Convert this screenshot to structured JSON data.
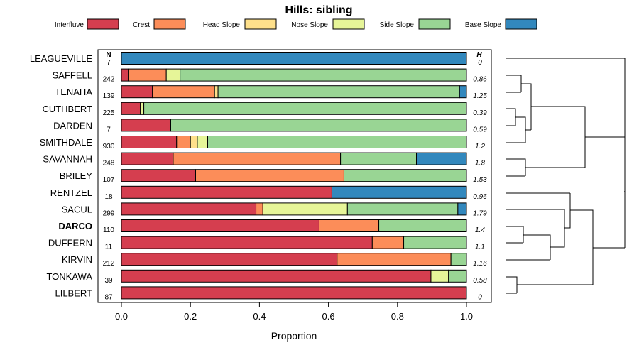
{
  "chart_data": {
    "type": "bar",
    "stacked": true,
    "orientation": "horizontal",
    "title": "Hills: sibling",
    "xlabel": "Proportion",
    "ylabel": "",
    "xlim": [
      0,
      1
    ],
    "xticks": [
      "0.0",
      "0.2",
      "0.4",
      "0.6",
      "0.8",
      "1.0"
    ],
    "n_header": "N",
    "h_header": "H",
    "legend": [
      {
        "name": "Interfluve",
        "color": "#d53e4f"
      },
      {
        "name": "Crest",
        "color": "#fc8d59"
      },
      {
        "name": "Head Slope",
        "color": "#fee08b"
      },
      {
        "name": "Nose Slope",
        "color": "#e6f598"
      },
      {
        "name": "Side Slope",
        "color": "#99d594"
      },
      {
        "name": "Base Slope",
        "color": "#3288bd"
      }
    ],
    "rows": [
      {
        "name": "LEAGUEVILLE",
        "n": "7",
        "h": "0",
        "bold": false,
        "values": [
          0,
          0,
          0,
          0,
          0,
          1.0
        ]
      },
      {
        "name": "SAFFELL",
        "n": "242",
        "h": "0.86",
        "bold": false,
        "values": [
          0.02,
          0.11,
          0.0,
          0.04,
          0.83,
          0.0
        ]
      },
      {
        "name": "TENAHA",
        "n": "139",
        "h": "1.25",
        "bold": false,
        "values": [
          0.09,
          0.18,
          0.01,
          0.0,
          0.7,
          0.02
        ]
      },
      {
        "name": "CUTHBERT",
        "n": "225",
        "h": "0.39",
        "bold": false,
        "values": [
          0.055,
          0.0,
          0.0,
          0.01,
          0.935,
          0.0
        ]
      },
      {
        "name": "DARDEN",
        "n": "7",
        "h": "0.59",
        "bold": false,
        "values": [
          0.143,
          0.0,
          0.0,
          0.0,
          0.857,
          0.0
        ]
      },
      {
        "name": "SMITHDALE",
        "n": "930",
        "h": "1.2",
        "bold": false,
        "values": [
          0.16,
          0.04,
          0.02,
          0.03,
          0.75,
          0.0
        ]
      },
      {
        "name": "SAVANNAH",
        "n": "248",
        "h": "1.8",
        "bold": false,
        "values": [
          0.15,
          0.485,
          0.0,
          0.0,
          0.22,
          0.145
        ]
      },
      {
        "name": "BRILEY",
        "n": "107",
        "h": "1.53",
        "bold": false,
        "values": [
          0.215,
          0.43,
          0.0,
          0.0,
          0.355,
          0.0
        ]
      },
      {
        "name": "RENTZEL",
        "n": "18",
        "h": "0.96",
        "bold": false,
        "values": [
          0.61,
          0.0,
          0.0,
          0.0,
          0.0,
          0.39
        ]
      },
      {
        "name": "SACUL",
        "n": "299",
        "h": "1.79",
        "bold": false,
        "values": [
          0.39,
          0.02,
          0.0,
          0.245,
          0.32,
          0.025
        ]
      },
      {
        "name": "DARCO",
        "n": "110",
        "h": "1.4",
        "bold": true,
        "values": [
          0.573,
          0.173,
          0.0,
          0.0,
          0.254,
          0.0
        ]
      },
      {
        "name": "DUFFERN",
        "n": "11",
        "h": "1.1",
        "bold": false,
        "values": [
          0.727,
          0.091,
          0.0,
          0.0,
          0.182,
          0.0
        ]
      },
      {
        "name": "KIRVIN",
        "n": "212",
        "h": "1.16",
        "bold": false,
        "values": [
          0.625,
          0.33,
          0.0,
          0.0,
          0.045,
          0.0
        ]
      },
      {
        "name": "TONKAWA",
        "n": "39",
        "h": "0.58",
        "bold": false,
        "values": [
          0.897,
          0.0,
          0.0,
          0.051,
          0.052,
          0.0
        ]
      },
      {
        "name": "LILBERT",
        "n": "87",
        "h": "0",
        "bold": false,
        "values": [
          1.0,
          0,
          0,
          0,
          0,
          0
        ]
      }
    ]
  }
}
